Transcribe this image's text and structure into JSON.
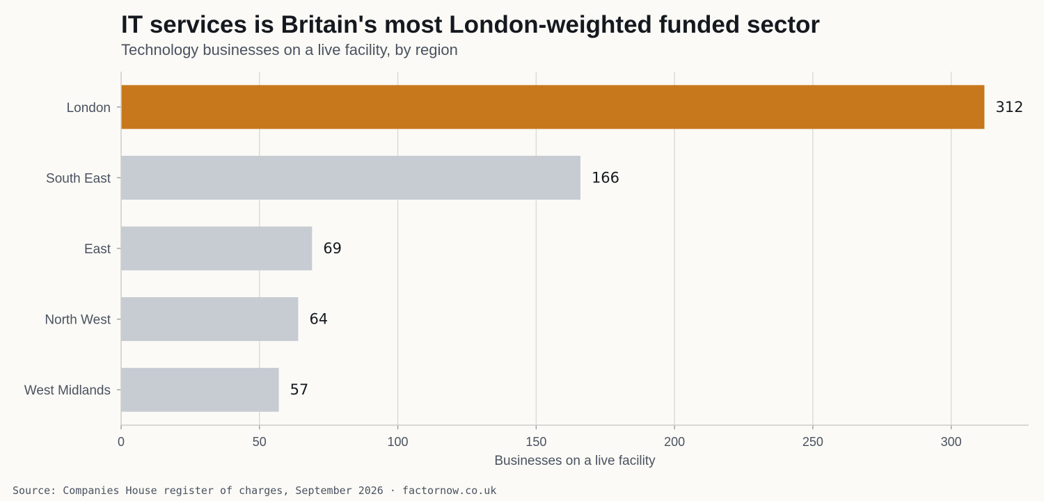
{
  "chart_data": {
    "type": "bar",
    "orientation": "horizontal",
    "title": "IT services is Britain's most London-weighted funded sector",
    "subtitle": "Technology businesses on a live facility, by region",
    "categories": [
      "London",
      "South East",
      "East",
      "North West",
      "West Midlands"
    ],
    "values": [
      312,
      166,
      69,
      64,
      57
    ],
    "xlabel": "Businesses on a live facility",
    "ylabel": "",
    "xlim": [
      0,
      328
    ],
    "xticks": [
      0,
      50,
      100,
      150,
      200,
      250,
      300
    ],
    "grid": "vertical",
    "colors": {
      "highlight": "#c8781c",
      "default": "#c7cbd2",
      "grid": "#dedcd6",
      "axis": "#cfcdc7"
    },
    "source": "Source: Companies House register of charges, September 2026 · factornow.co.uk"
  }
}
